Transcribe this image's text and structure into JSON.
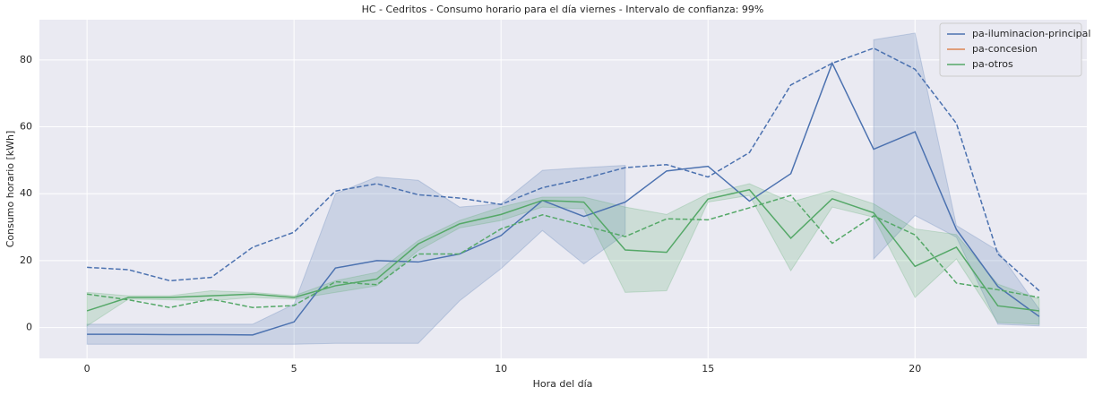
{
  "chart_data": {
    "type": "line",
    "title": "HC - Cedritos - Consumo horario para el día viernes - Intervalo de confianza: 99%",
    "xlabel": "Hora del día",
    "ylabel": "Consumo horario [kWh]",
    "x": [
      0,
      1,
      2,
      3,
      4,
      5,
      6,
      7,
      8,
      9,
      10,
      11,
      12,
      13,
      14,
      15,
      16,
      17,
      18,
      19,
      20,
      21,
      22,
      23
    ],
    "xlim": [
      -1.15,
      24.15
    ],
    "xticks": [
      0,
      5,
      10,
      15,
      20
    ],
    "ylim": [
      -9.2,
      92
    ],
    "yticks": [
      0,
      20,
      40,
      60,
      80
    ],
    "grid": true,
    "legend": "upper right",
    "series": [
      {
        "name": "pa-iluminacion-principal",
        "color": "#4c72b0",
        "values": [
          -2,
          -2,
          -2.1,
          -2.1,
          -2.2,
          1.7,
          17.8,
          20,
          19.6,
          22,
          27.5,
          38,
          33.2,
          37.5,
          46.8,
          48.2,
          37.8,
          46,
          79,
          53.3,
          58.5,
          29.3,
          12.3,
          3.3
        ],
        "reference_values": [
          18,
          17.3,
          14,
          15,
          24,
          28.5,
          40.8,
          43,
          39.7,
          38.7,
          36.8,
          41.8,
          44.5,
          47.8,
          48.7,
          45,
          52.3,
          72.5,
          79,
          83.5,
          77.2,
          61,
          22,
          11
        ],
        "band_lower": [
          -5,
          -5,
          -5,
          -5,
          -5,
          -5,
          -4.7,
          -4.7,
          -4.7,
          8,
          17.6,
          29,
          19,
          28,
          null,
          null,
          null,
          null,
          null,
          20.5,
          33.5,
          27,
          1,
          0.5
        ],
        "band_upper": [
          1,
          1,
          1,
          1,
          1,
          7,
          40,
          45,
          44,
          36,
          37,
          47,
          47.8,
          48.5,
          null,
          null,
          null,
          null,
          null,
          86,
          88,
          30.5,
          23,
          5.5
        ]
      },
      {
        "name": "pa-concesion",
        "color": "#dd8452"
      },
      {
        "name": "pa-otros",
        "color": "#55a868",
        "values": [
          5,
          9,
          9,
          9.5,
          10,
          9,
          12.5,
          14.5,
          25,
          31,
          33.8,
          38,
          37.5,
          23.2,
          22.5,
          38.4,
          41.2,
          26.7,
          38.5,
          34.3,
          18.3,
          24,
          6.5,
          5
        ],
        "reference_values": [
          10,
          8.3,
          6,
          8.5,
          6,
          6.6,
          13.7,
          12.8,
          22,
          22,
          29.5,
          33.7,
          30.5,
          27.2,
          32.5,
          32.2,
          35.8,
          39.5,
          25.2,
          33.4,
          27.7,
          13.3,
          11.3,
          9
        ],
        "band_lower": [
          0.5,
          8.5,
          8.3,
          8,
          9,
          8.5,
          10.5,
          12.5,
          23,
          29.8,
          32,
          36,
          35.5,
          10.5,
          11,
          37.5,
          39.5,
          17,
          36,
          33,
          9,
          20.5,
          1.5,
          1
        ],
        "band_upper": [
          10.5,
          9.5,
          9.5,
          11,
          10.5,
          9.5,
          14,
          16.5,
          26,
          32,
          36,
          39,
          39,
          36,
          33.8,
          40,
          43,
          37.5,
          41,
          37,
          29.5,
          27.8,
          13,
          8.5
        ]
      }
    ]
  }
}
